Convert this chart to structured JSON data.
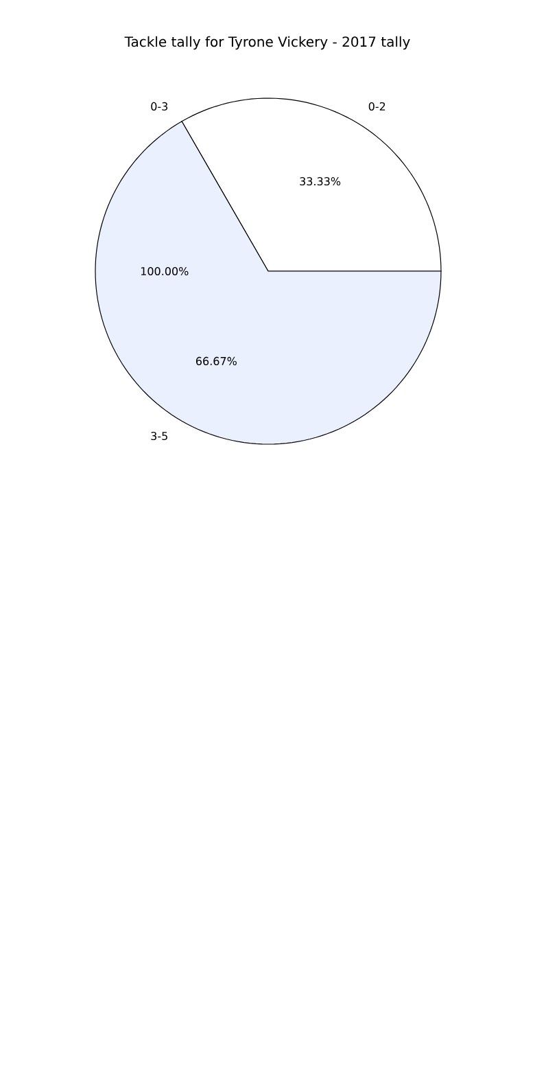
{
  "chart_data": {
    "type": "pie",
    "title": "Tackle tally for Tyrone Vickery - 2017 tally",
    "categories": [
      "0-2",
      "0-3",
      "3-5"
    ],
    "values": [
      33.33,
      0,
      66.67
    ],
    "value_labels": [
      "33.33%",
      null,
      "66.67%"
    ],
    "colors": [
      "#ffffff",
      "#dde6f7",
      "#eaf0fd"
    ],
    "annotations": [
      "100.00%"
    ]
  }
}
